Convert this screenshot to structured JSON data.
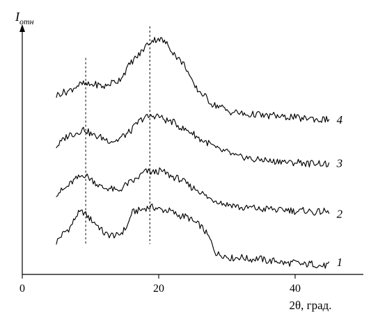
{
  "chart_data": {
    "type": "line",
    "title": "",
    "xlabel": "2θ, град.",
    "ylabel": {
      "main": "I",
      "sub": "отн"
    },
    "xlim": [
      0,
      50
    ],
    "xticks": [
      0,
      20,
      40
    ],
    "ylim": [
      0,
      10
    ],
    "grid": false,
    "legend": "none",
    "reference_lines": [
      9.3,
      18.7
    ],
    "series": [
      {
        "name": "1",
        "x": [
          5,
          7,
          8,
          9,
          10,
          12,
          14,
          15.5,
          16,
          18,
          20,
          22,
          24,
          26,
          27.5,
          28.5,
          30,
          32,
          35,
          38,
          40,
          42,
          45
        ],
        "y": [
          1.35,
          1.95,
          2.45,
          2.55,
          2.3,
          1.7,
          1.55,
          2.05,
          2.5,
          2.75,
          2.72,
          2.55,
          2.35,
          2.05,
          1.45,
          0.85,
          0.72,
          0.68,
          0.62,
          0.5,
          0.45,
          0.42,
          0.35
        ]
      },
      {
        "name": "2",
        "x": [
          5,
          7,
          9,
          10,
          12,
          14,
          16,
          18,
          20,
          22,
          24,
          26,
          28,
          30,
          32,
          35,
          40,
          45
        ],
        "y": [
          3.3,
          3.7,
          4.15,
          3.9,
          3.55,
          3.45,
          3.8,
          4.2,
          4.25,
          4.05,
          3.75,
          3.4,
          3.05,
          2.9,
          2.75,
          2.7,
          2.62,
          2.55
        ]
      },
      {
        "name": "3",
        "x": [
          5,
          7,
          9,
          10,
          12,
          14,
          16,
          18,
          20,
          22,
          24,
          26,
          28,
          30,
          32,
          35,
          40,
          45
        ],
        "y": [
          5.3,
          5.75,
          5.95,
          5.8,
          5.55,
          5.5,
          5.95,
          6.5,
          6.5,
          6.25,
          5.95,
          5.6,
          5.25,
          5.0,
          4.82,
          4.7,
          4.6,
          4.55
        ]
      },
      {
        "name": "4",
        "x": [
          5,
          7,
          9,
          10,
          12,
          14,
          16,
          18,
          19,
          20,
          21,
          22,
          24,
          25,
          26,
          28,
          30,
          32,
          35,
          40,
          45
        ],
        "y": [
          7.35,
          7.6,
          7.85,
          7.8,
          7.75,
          7.95,
          8.7,
          9.35,
          9.6,
          9.75,
          9.5,
          9.2,
          8.5,
          7.85,
          7.5,
          7.0,
          6.75,
          6.6,
          6.55,
          6.45,
          6.35
        ]
      }
    ]
  }
}
